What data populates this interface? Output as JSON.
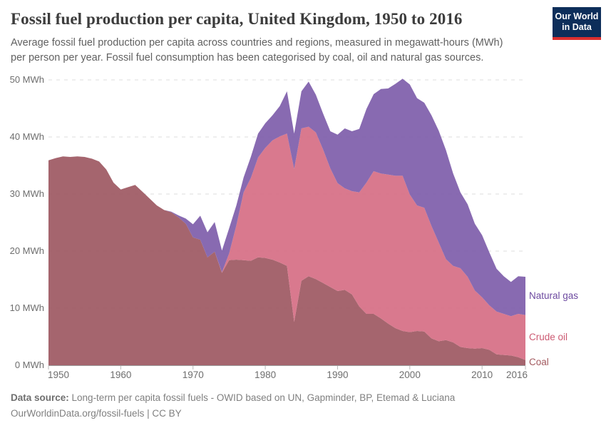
{
  "header": {
    "title": "Fossil fuel production per capita, United Kingdom, 1950 to 2016",
    "subtitle_line1": "Average fossil fuel production per capita across countries and regions, measured in megawatt-hours (MWh)",
    "subtitle_line2": "per person per year. Fossil fuel consumption has been categorised by coal, oil and natural gas sources.",
    "logo": {
      "line1": "Our World",
      "line2": "in Data",
      "bg_color": "#0d2e5a",
      "accent_color": "#dc2f2f"
    }
  },
  "footer": {
    "source_label": "Data source:",
    "source_text": " Long-term per capita fossil fuels - OWID based on UN, Gapminder, BP, Etemad & Luciana",
    "license_line": "OurWorldinData.org/fossil-fuels | CC BY"
  },
  "chart_data": {
    "type": "area",
    "stacked": true,
    "title": "Fossil fuel production per capita, United Kingdom, 1950 to 2016",
    "x_start": 1950,
    "x_end": 2016,
    "x_step": 1,
    "xlim": [
      1950,
      2016
    ],
    "ylim": [
      0,
      50
    ],
    "y_unit": " MWh",
    "y_ticks": [
      0,
      10,
      20,
      30,
      40,
      50
    ],
    "x_ticks": [
      1950,
      1960,
      1970,
      1980,
      1990,
      2000,
      2010,
      2016
    ],
    "grid": "dashed-horizontal",
    "legend_position": "right-of-plot",
    "grid_color": "#dcdcdc",
    "axis_line_color": "#9a9a9a",
    "series": [
      {
        "name": "Coal",
        "color": "#9e5963",
        "label_color": "#a2595e",
        "values": [
          35.9,
          36.3,
          36.6,
          36.5,
          36.6,
          36.5,
          36.2,
          35.7,
          34.3,
          32.0,
          30.8,
          31.2,
          31.6,
          30.4,
          29.2,
          28.0,
          27.2,
          26.8,
          25.9,
          24.8,
          22.4,
          22.0,
          18.9,
          19.9,
          16.2,
          18.4,
          18.5,
          18.4,
          18.3,
          18.9,
          18.8,
          18.5,
          18.0,
          17.4,
          7.6,
          14.8,
          15.6,
          15.1,
          14.4,
          13.7,
          13.0,
          13.2,
          12.4,
          10.3,
          9.0,
          9.0,
          8.2,
          7.3,
          6.5,
          6.0,
          5.8,
          6.0,
          5.9,
          4.7,
          4.2,
          4.4,
          4.0,
          3.2,
          3.0,
          2.9,
          3.0,
          2.7,
          1.9,
          1.8,
          1.7,
          1.4,
          0.9
        ]
      },
      {
        "name": "Crude oil",
        "color": "#d66f85",
        "label_color": "#cc5a72",
        "values": [
          0,
          0,
          0,
          0,
          0,
          0,
          0,
          0,
          0,
          0,
          0,
          0,
          0,
          0,
          0,
          0,
          0,
          0,
          0,
          0,
          0,
          0,
          0,
          0,
          0.1,
          1.2,
          6.0,
          11.9,
          14.5,
          17.5,
          19.3,
          20.9,
          22.1,
          23.2,
          26.8,
          26.7,
          26.2,
          25.7,
          23.4,
          20.8,
          18.9,
          17.8,
          18.1,
          20.0,
          23.0,
          25.0,
          25.4,
          26.1,
          26.7,
          27.2,
          24.1,
          22.0,
          21.7,
          19.7,
          17.3,
          14.2,
          13.4,
          13.8,
          12.5,
          10.2,
          8.9,
          7.8,
          7.5,
          7.2,
          6.9,
          7.6,
          7.9
        ]
      },
      {
        "name": "Natural gas",
        "color": "#7f5fab",
        "label_color": "#6d4aa0",
        "values": [
          0,
          0,
          0,
          0,
          0,
          0,
          0,
          0,
          0,
          0,
          0,
          0,
          0,
          0,
          0,
          0,
          0,
          0.1,
          0.35,
          0.9,
          2.3,
          4.2,
          4.4,
          5.2,
          3.8,
          4.4,
          3.5,
          2.6,
          3.7,
          4.2,
          4.3,
          4.4,
          5.3,
          7.4,
          6.2,
          6.5,
          7.9,
          6.6,
          6.3,
          6.5,
          8.5,
          10.5,
          10.5,
          11.1,
          12.9,
          13.5,
          14.8,
          15.1,
          16.1,
          17.0,
          19.3,
          18.8,
          18.4,
          19.4,
          19.6,
          19.1,
          16.2,
          13.3,
          12.7,
          11.7,
          10.9,
          9.3,
          7.5,
          6.6,
          6.0,
          6.6,
          6.7
        ]
      }
    ]
  }
}
